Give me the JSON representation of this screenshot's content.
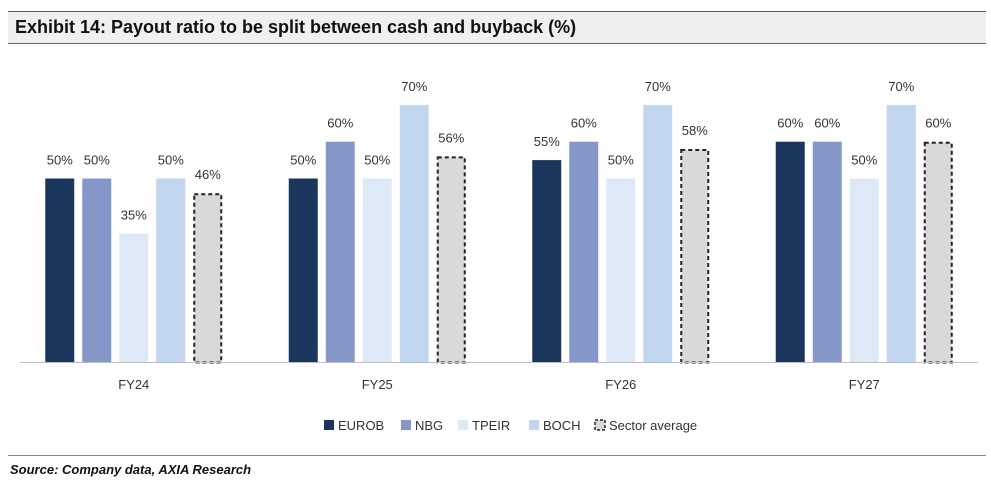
{
  "title": "Exhibit 14: Payout ratio to be split between cash and buyback (%)",
  "source": "Source: Company data, AXIA Research",
  "chart_data": {
    "type": "bar",
    "categories": [
      "FY24",
      "FY25",
      "FY26",
      "FY27"
    ],
    "series": [
      {
        "name": "EUROB",
        "color": "#1b365d",
        "values": [
          50,
          50,
          55,
          60
        ],
        "labels": [
          "50%",
          "50%",
          "55%",
          "60%"
        ]
      },
      {
        "name": "NBG",
        "color": "#8497c8",
        "values": [
          50,
          60,
          60,
          60
        ],
        "labels": [
          "50%",
          "60%",
          "60%",
          "60%"
        ]
      },
      {
        "name": "TPEIR",
        "color": "#dde9f6",
        "values": [
          35,
          50,
          50,
          50
        ],
        "labels": [
          "35%",
          "50%",
          "50%",
          "50%"
        ]
      },
      {
        "name": "BOCH",
        "color": "#c2d6ef",
        "values": [
          50,
          70,
          70,
          70
        ],
        "labels": [
          "50%",
          "70%",
          "70%",
          "70%"
        ]
      },
      {
        "name": "Sector average",
        "color": "#d9d9d9",
        "dashed": true,
        "values": [
          46,
          56,
          58,
          60
        ],
        "labels": [
          "46%",
          "56%",
          "58%",
          "60%"
        ]
      }
    ],
    "ylim": [
      0,
      70
    ],
    "grid": false,
    "legend": "bottom",
    "data_labels": true
  }
}
